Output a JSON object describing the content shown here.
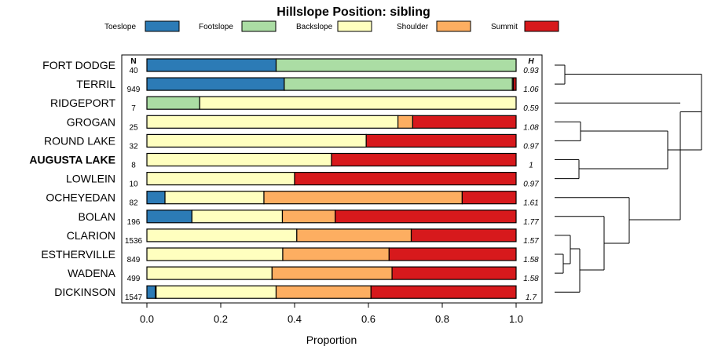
{
  "chart_data": {
    "type": "bar",
    "orientation": "horizontal-stacked-proportion",
    "title": "Hillslope Position: sibling",
    "xlabel": "Proportion",
    "ylabel": "",
    "xlim": [
      0,
      1
    ],
    "x_ticks": [
      "0.0",
      "0.2",
      "0.4",
      "0.6",
      "0.8",
      "1.0"
    ],
    "n_header": "N",
    "h_header": "H",
    "legend_position": "top",
    "series": [
      {
        "name": "Toeslope",
        "color": "#2C7BB6"
      },
      {
        "name": "Footslope",
        "color": "#ABDDA4"
      },
      {
        "name": "Backslope",
        "color": "#FFFFBF"
      },
      {
        "name": "Shoulder",
        "color": "#FDAE61"
      },
      {
        "name": "Summit",
        "color": "#D7191C"
      }
    ],
    "rows": [
      {
        "name": "FORT DODGE",
        "n": "40",
        "h": "0.93",
        "bold": false,
        "values": [
          0.35,
          0.65,
          0,
          0,
          0
        ]
      },
      {
        "name": "TERRIL",
        "n": "949",
        "h": "1.06",
        "bold": false,
        "values": [
          0.372,
          0.618,
          0.003,
          0,
          0.007
        ]
      },
      {
        "name": "RIDGEPORT",
        "n": "7",
        "h": "0.59",
        "bold": false,
        "values": [
          0,
          0.143,
          0.857,
          0,
          0
        ]
      },
      {
        "name": "GROGAN",
        "n": "25",
        "h": "1.08",
        "bold": false,
        "values": [
          0,
          0,
          0.68,
          0.04,
          0.28
        ]
      },
      {
        "name": "ROUND LAKE",
        "n": "32",
        "h": "0.97",
        "bold": false,
        "values": [
          0,
          0,
          0.594,
          0,
          0.406
        ]
      },
      {
        "name": "AUGUSTA LAKE",
        "n": "8",
        "h": "1",
        "bold": true,
        "values": [
          0,
          0,
          0.5,
          0,
          0.5
        ]
      },
      {
        "name": "LOWLEIN",
        "n": "10",
        "h": "0.97",
        "bold": false,
        "values": [
          0,
          0,
          0.4,
          0,
          0.6
        ]
      },
      {
        "name": "OCHEYEDAN",
        "n": "82",
        "h": "1.61",
        "bold": false,
        "values": [
          0.049,
          0,
          0.268,
          0.537,
          0.146
        ]
      },
      {
        "name": "BOLAN",
        "n": "196",
        "h": "1.77",
        "bold": false,
        "values": [
          0.122,
          0,
          0.245,
          0.143,
          0.49
        ]
      },
      {
        "name": "CLARION",
        "n": "1536",
        "h": "1.57",
        "bold": false,
        "values": [
          0,
          0,
          0.406,
          0.31,
          0.284
        ]
      },
      {
        "name": "ESTHERVILLE",
        "n": "849",
        "h": "1.58",
        "bold": false,
        "values": [
          0,
          0,
          0.368,
          0.288,
          0.344
        ]
      },
      {
        "name": "WADENA",
        "n": "499",
        "h": "1.58",
        "bold": false,
        "values": [
          0,
          0,
          0.339,
          0.325,
          0.336
        ]
      },
      {
        "name": "DICKINSON",
        "n": "1547",
        "h": "1.7",
        "bold": false,
        "values": [
          0.023,
          0.002,
          0.325,
          0.257,
          0.393
        ]
      }
    ]
  }
}
